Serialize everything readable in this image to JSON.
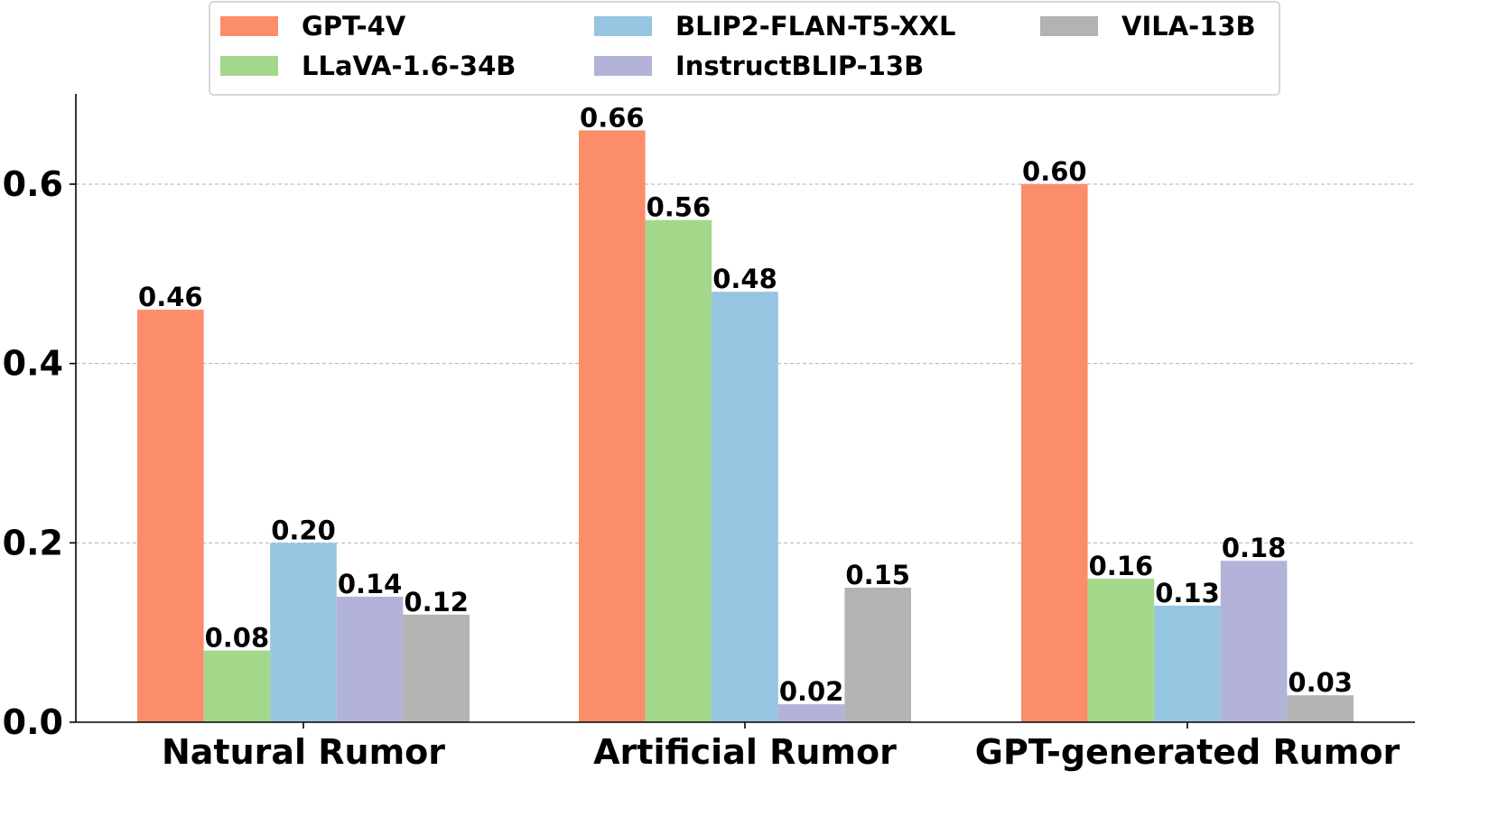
{
  "chart_data": {
    "type": "bar",
    "categories": [
      "Natural Rumor",
      "Artificial Rumor",
      "GPT-generated Rumor"
    ],
    "series": [
      {
        "name": "GPT-4V",
        "color": "#fc8d6a",
        "values": [
          0.46,
          0.66,
          0.6
        ],
        "labels": [
          "0.46",
          "0.66",
          "0.60"
        ]
      },
      {
        "name": "LLaVA-1.6-34B",
        "color": "#a3d88b",
        "values": [
          0.08,
          0.56,
          0.16
        ],
        "labels": [
          "0.08",
          "0.56",
          "0.16"
        ]
      },
      {
        "name": "BLIP2-FLAN-T5-XXL",
        "color": "#96c5e2",
        "values": [
          0.2,
          0.48,
          0.13
        ],
        "labels": [
          "0.20",
          "0.48",
          "0.13"
        ]
      },
      {
        "name": "InstructBLIP-13B",
        "color": "#b3b3d9",
        "values": [
          0.14,
          0.02,
          0.18
        ],
        "labels": [
          "0.14",
          "0.02",
          "0.18"
        ]
      },
      {
        "name": "VILA-13B",
        "color": "#b3b3b3",
        "values": [
          0.12,
          0.15,
          0.03
        ],
        "labels": [
          "0.12",
          "0.15",
          "0.03"
        ]
      }
    ],
    "yticks": [
      0.0,
      0.2,
      0.4,
      0.6
    ],
    "ytick_labels": [
      "0.0",
      "0.2",
      "0.4",
      "0.6"
    ],
    "ylim": [
      0,
      0.7
    ],
    "grid": "horizontal dashed",
    "legend_position": "top",
    "title": "",
    "xlabel": "",
    "ylabel": ""
  }
}
